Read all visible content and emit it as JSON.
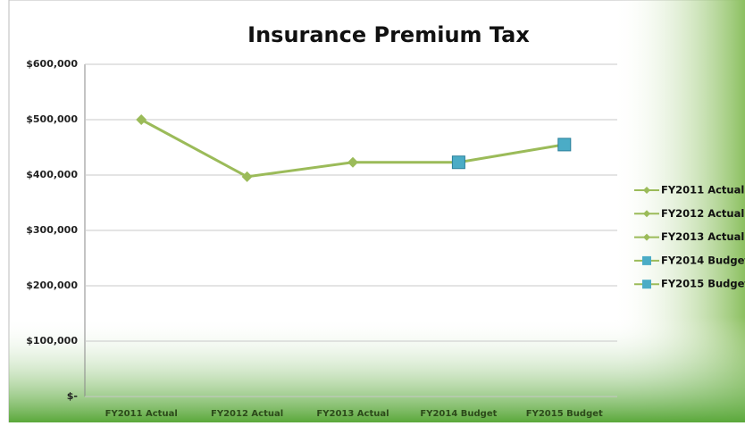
{
  "chart_data": {
    "type": "line",
    "title": "Insurance Premium Tax",
    "categories": [
      "FY2011 Actual",
      "FY2012 Actual",
      "FY2013 Actual",
      "FY2014 Budget",
      "FY2015 Budget"
    ],
    "values": [
      500000,
      397000,
      423000,
      423000,
      455000
    ],
    "color": "#9bbb59",
    "point_colors": [
      "#9bbb59",
      "#9bbb59",
      "#9bbb59",
      "#4bacc6",
      "#4bacc6"
    ],
    "point_markers": [
      "diamond",
      "diamond",
      "diamond",
      "square",
      "square"
    ],
    "ylim": [
      0,
      600000
    ],
    "yticks": [
      {
        "value": 0,
        "label": "$-"
      },
      {
        "value": 100000,
        "label": "$100,000"
      },
      {
        "value": 200000,
        "label": "$200,000"
      },
      {
        "value": 300000,
        "label": "$300,000"
      },
      {
        "value": 400000,
        "label": "$400,000"
      },
      {
        "value": 500000,
        "label": "$500,000"
      },
      {
        "value": 600000,
        "label": "$600,000"
      }
    ],
    "grid": true,
    "legend": "right"
  }
}
